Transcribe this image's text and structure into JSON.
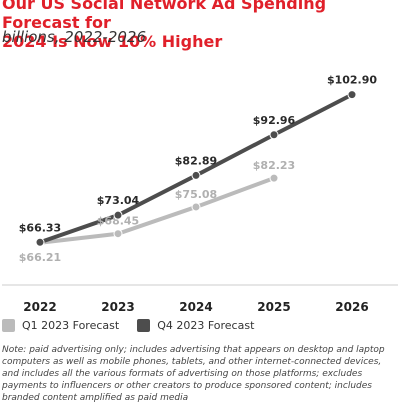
{
  "chart_data": {
    "type": "line",
    "title": "Our US Social Network Ad Spending Forecast for\n2024 Is Now 10% Higher",
    "subtitle": "billions, 2022-2026",
    "categories": [
      "2022",
      "2023",
      "2024",
      "2025",
      "2026"
    ],
    "series": [
      {
        "name": "Q1 2023 Forecast",
        "color": "#bbbbbb",
        "values": [
          66.21,
          68.45,
          75.08,
          82.23,
          null
        ],
        "labels": [
          "$66.21",
          "$68.45",
          "$75.08",
          "$82.23",
          null
        ]
      },
      {
        "name": "Q4 2023 Forecast",
        "color": "#4d4d4d",
        "values": [
          66.33,
          73.04,
          82.89,
          92.96,
          102.9
        ],
        "labels": [
          "$66.33",
          "$73.04",
          "$82.89",
          "$92.96",
          "$102.90"
        ]
      }
    ],
    "ylim": [
      55,
      110
    ],
    "grid": false,
    "legend_position": "bottom-left"
  },
  "note": "Note: paid advertising only; includes advertising that appears on desktop and laptop computers as well as mobile phones, tablets, and other internet-connected devices, and includes all the various formats of advertising on those platforms; excludes payments to influencers or other creators to produce sponsored content; includes branded content amplified as paid media"
}
